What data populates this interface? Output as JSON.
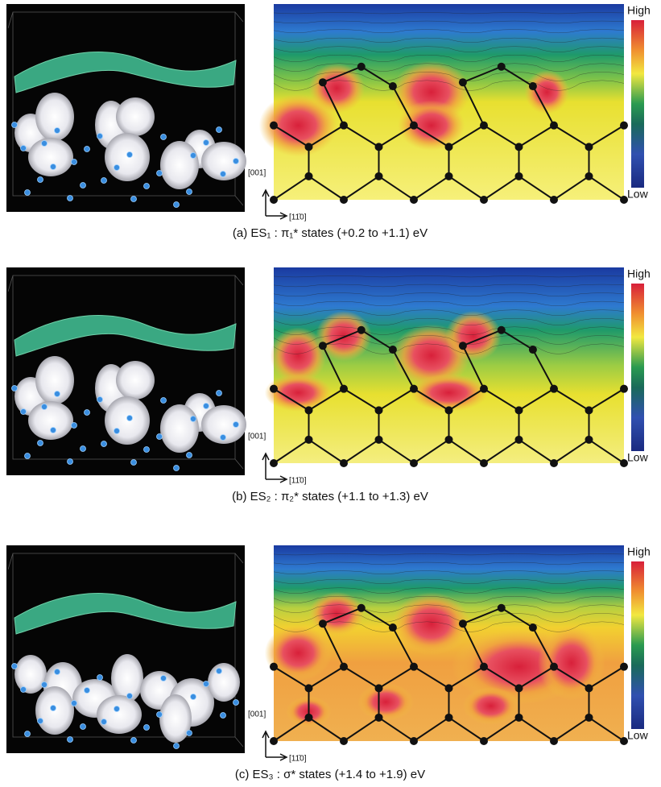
{
  "panels": [
    {
      "caption": "(a) ES₁ : π₁* states (+0.2 to +1.1) eV",
      "high_label": "High",
      "low_label": "Low",
      "axis_vertical": "[001]",
      "axis_horizontal": "[11̄0]"
    },
    {
      "caption": "(b) ES₂ : π₂* states (+1.1 to +1.3) eV",
      "high_label": "High",
      "low_label": "Low",
      "axis_vertical": "[001]",
      "axis_horizontal": "[11̄0]"
    },
    {
      "caption": "(c) ES₃ : σ* states (+1.4 to +1.9) eV",
      "high_label": "High",
      "low_label": "Low",
      "axis_vertical": "[001]",
      "axis_horizontal": "[11̄0]"
    }
  ]
}
